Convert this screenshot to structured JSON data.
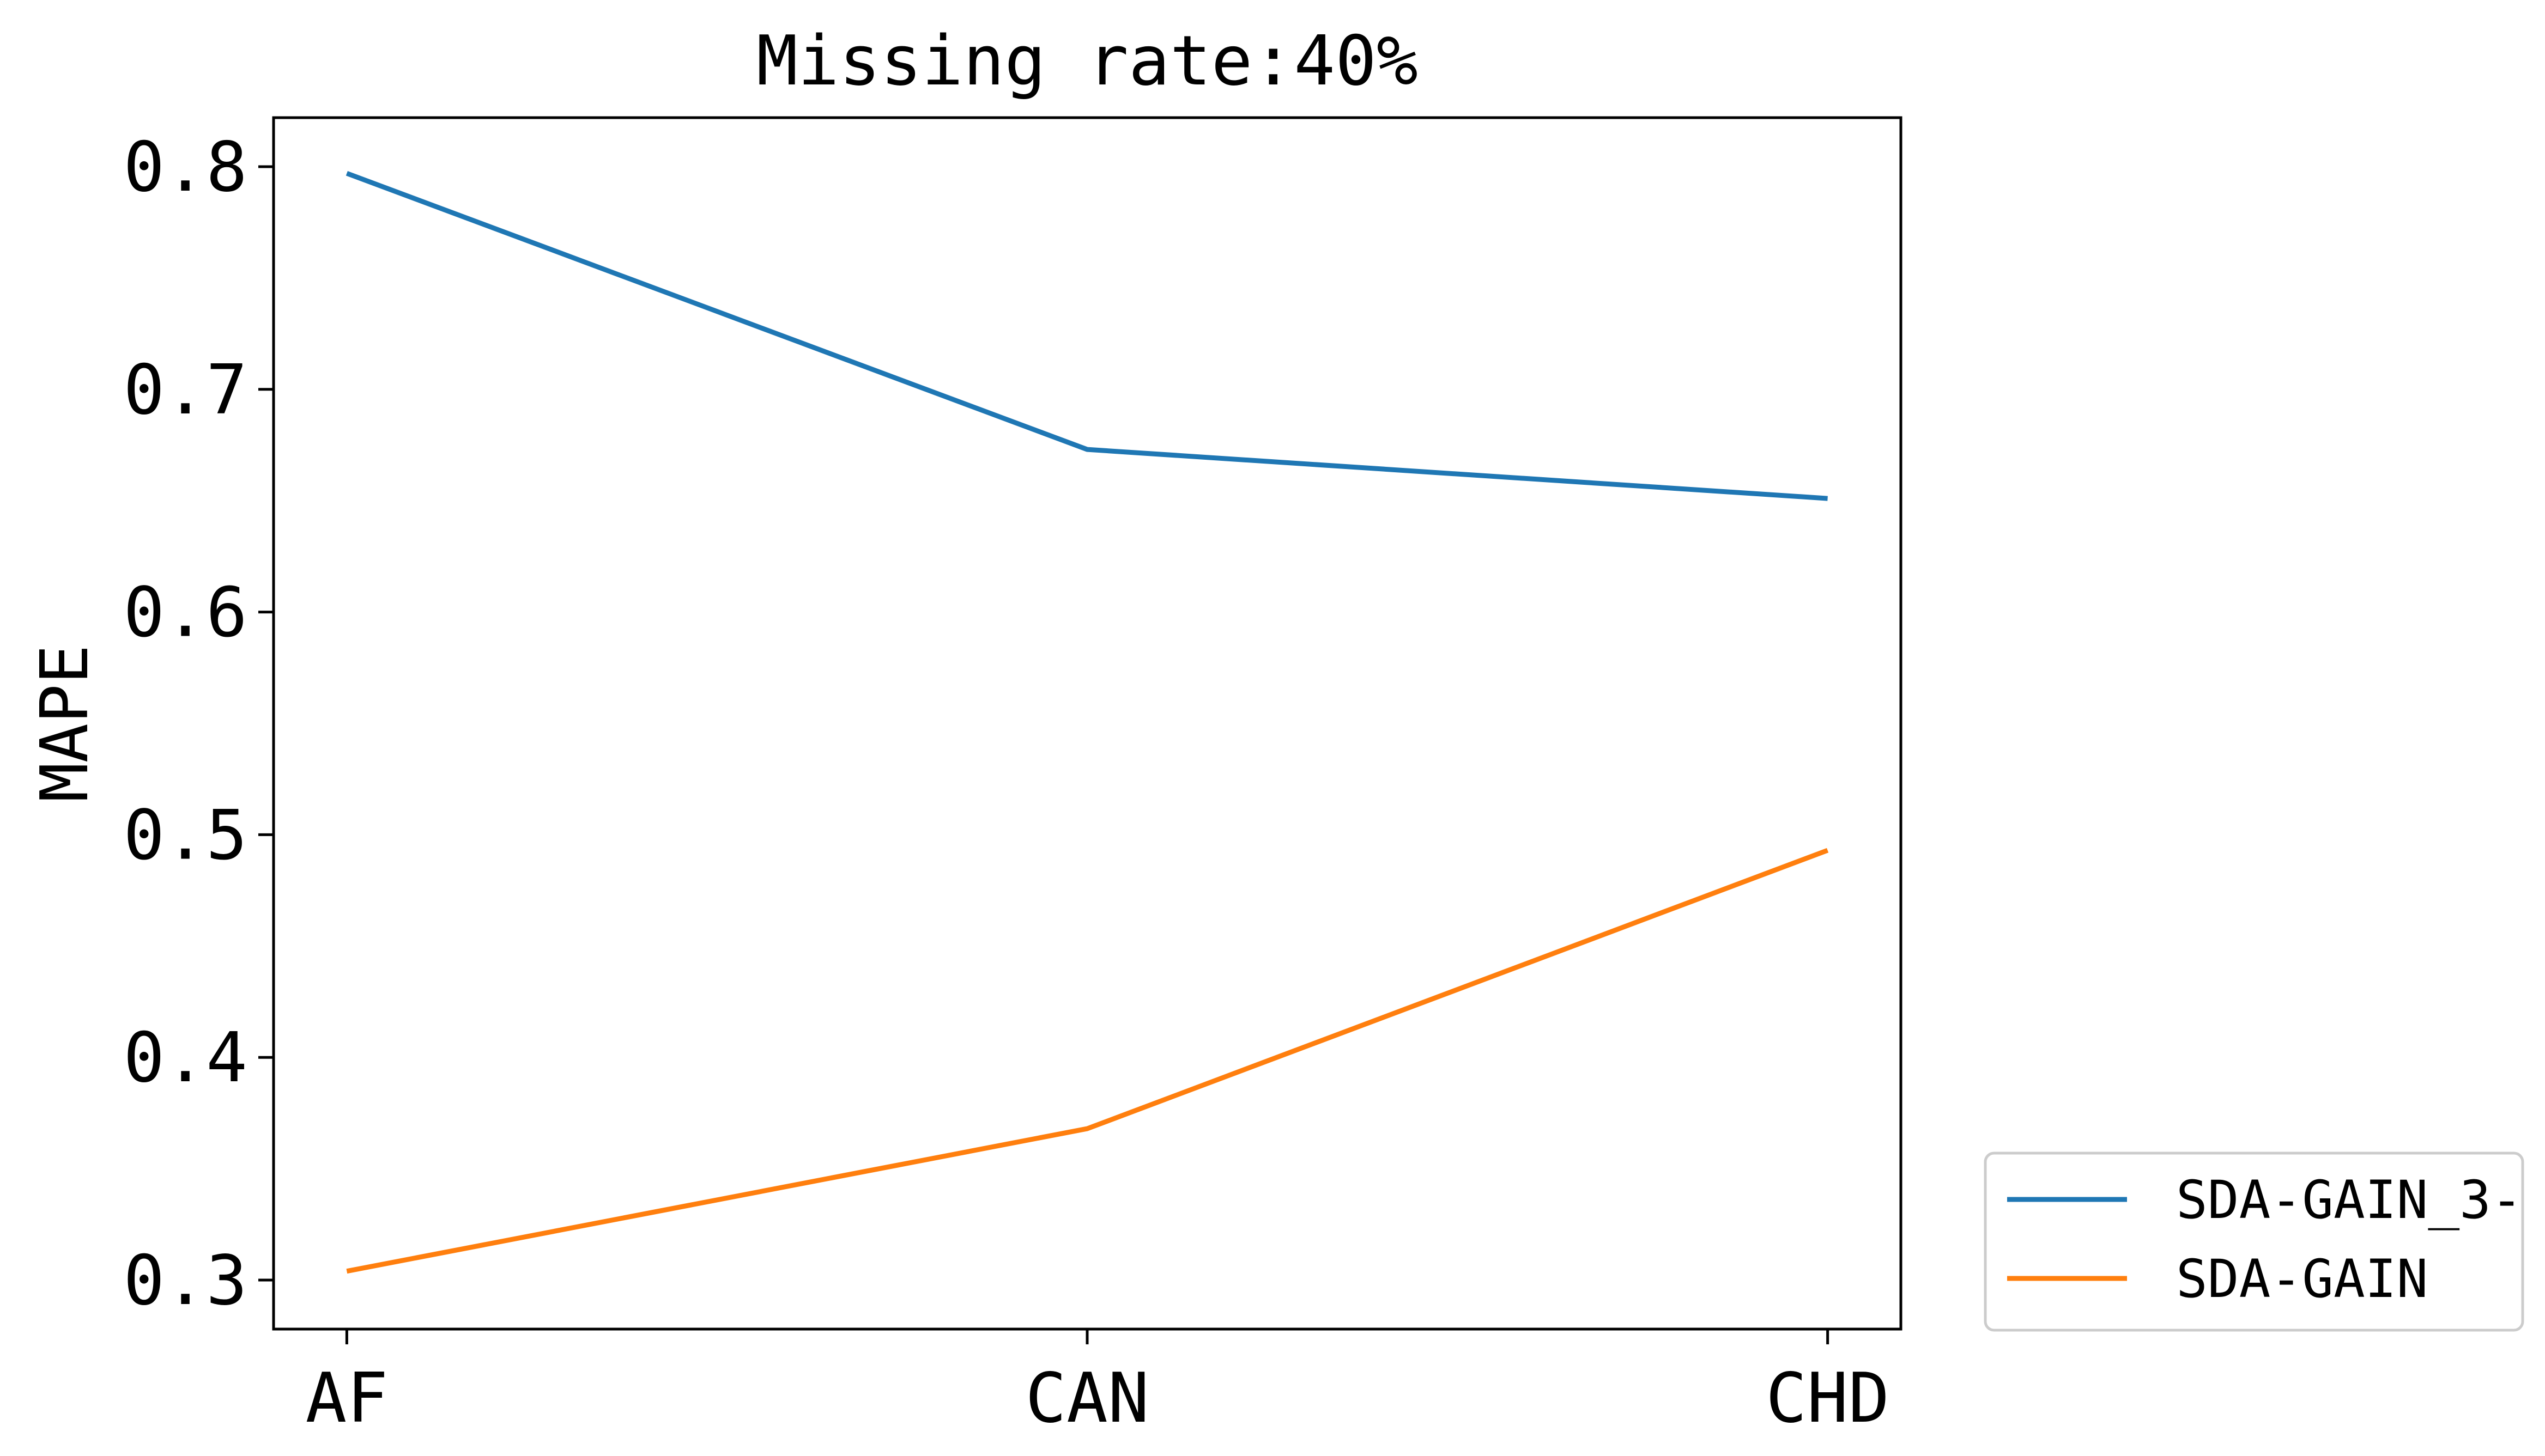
{
  "chart_data": {
    "type": "line",
    "title": "Missing rate:40%",
    "xlabel": "",
    "ylabel": "MAPE",
    "categories": [
      "AF",
      "CAN",
      "CHD"
    ],
    "ylim": [
      0.278,
      0.822
    ],
    "yticks": [
      0.3,
      0.4,
      0.5,
      0.6,
      0.7,
      0.8
    ],
    "ytick_labels": [
      "0.3",
      "0.4",
      "0.5",
      "0.6",
      "0.7",
      "0.8"
    ],
    "grid": false,
    "legend_position": "outside-bottom-right",
    "series": [
      {
        "name": "SDA-GAIN_3-",
        "color": "#1f77b4",
        "values": [
          0.797,
          0.673,
          0.651
        ]
      },
      {
        "name": "SDA-GAIN",
        "color": "#ff7f0e",
        "values": [
          0.304,
          0.368,
          0.493
        ]
      }
    ]
  }
}
